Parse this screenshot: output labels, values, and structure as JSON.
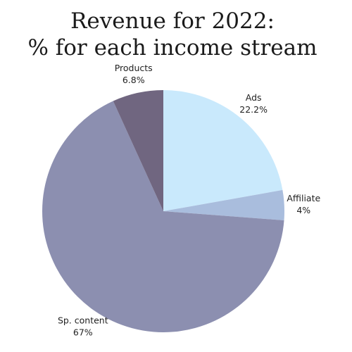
{
  "chart_data": {
    "type": "pie",
    "title": [
      "Revenue for 2022:",
      "% for each income stream"
    ],
    "categories": [
      "Ads",
      "Affiliate",
      "Sp. content",
      "Products"
    ],
    "values": [
      22.2,
      4,
      67,
      6.8
    ],
    "value_labels": [
      "22.2%",
      "4%",
      "67%",
      "6.8%"
    ],
    "colors": [
      "#c9e9fc",
      "#a9bddd",
      "#8c8fb0",
      "#706680"
    ]
  }
}
